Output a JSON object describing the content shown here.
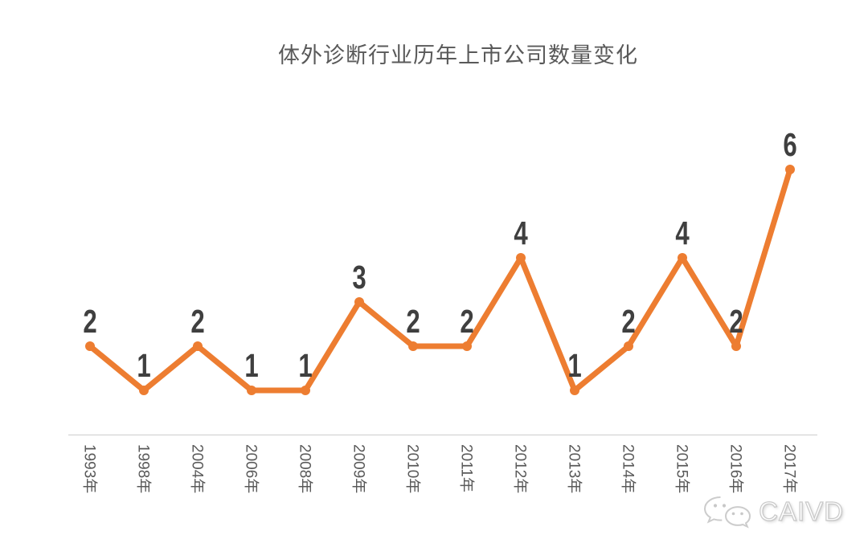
{
  "title": "体外诊断行业历年上市公司数量变化",
  "watermark": {
    "icon": "wechat-icon",
    "text": "CAIVD"
  },
  "chart_data": {
    "type": "line",
    "title": "体外诊断行业历年上市公司数量变化",
    "categories": [
      "1993年",
      "1998年",
      "2004年",
      "2006年",
      "2008年",
      "2009年",
      "2010年",
      "2011年",
      "2012年",
      "2013年",
      "2014年",
      "2015年",
      "2016年",
      "2017年"
    ],
    "values": [
      2,
      1,
      2,
      1,
      1,
      3,
      2,
      2,
      4,
      1,
      2,
      4,
      2,
      6
    ],
    "xlabel": "",
    "ylabel": "",
    "ylim": [
      0,
      7
    ],
    "grid": false,
    "legend": "none",
    "data_labels": true,
    "x_tick_rotation": 90,
    "line_color": "#ED7D31",
    "marker": "circle",
    "label_color": "#3F3F3F",
    "tick_color": "#595959",
    "axis_color": "#D9D9D9",
    "background_color": "#FFFFFF"
  }
}
